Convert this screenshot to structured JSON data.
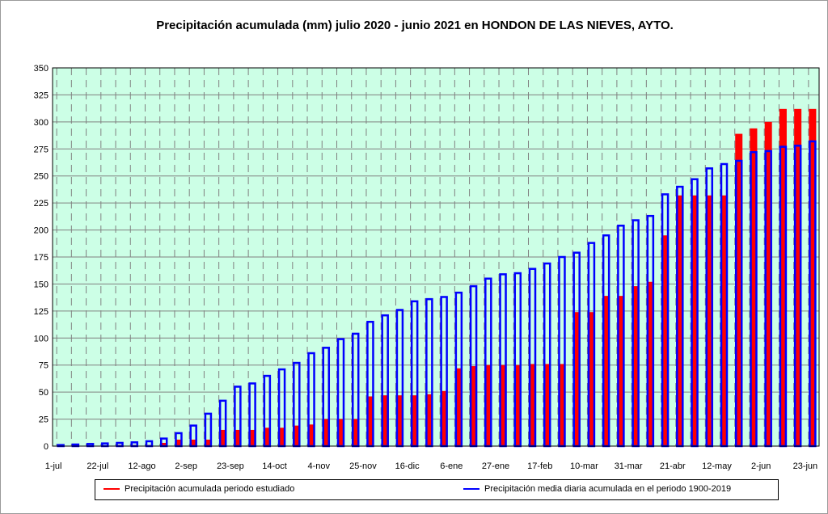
{
  "chart_data": {
    "type": "bar",
    "title": "Precipitación acumulada (mm) julio 2020 - junio 2021 en HONDON DE LAS NIEVES, AYTO.",
    "xlabel": "",
    "ylabel": "",
    "ylim": [
      0,
      350
    ],
    "yticks": [
      0,
      25,
      50,
      75,
      100,
      125,
      150,
      175,
      200,
      225,
      250,
      275,
      300,
      325,
      350
    ],
    "xtick_labels": [
      "1-jul",
      "22-jul",
      "12-ago",
      "2-sep",
      "23-sep",
      "14-oct",
      "4-nov",
      "25-nov",
      "16-dic",
      "6-ene",
      "27-ene",
      "17-feb",
      "10-mar",
      "31-mar",
      "21-abr",
      "12-may",
      "2-jun",
      "23-jun"
    ],
    "xtick_every": 3,
    "grid": true,
    "legend_position": "bottom",
    "series": [
      {
        "name": "Precipitación acumulada periodo estudiado",
        "color": "#ff0000",
        "values": [
          0,
          0,
          0.5,
          0.5,
          1,
          1,
          1,
          3,
          6,
          6,
          6,
          15,
          15,
          15,
          17,
          17,
          19,
          20,
          25,
          25,
          25,
          46,
          47,
          47,
          47,
          48,
          51,
          72,
          74,
          75,
          75,
          75,
          76,
          76,
          76,
          124,
          124,
          139,
          139,
          148,
          152,
          195,
          232,
          232,
          232,
          232,
          289,
          294,
          300,
          312,
          312,
          312
        ]
      },
      {
        "name": "Precipitación media diaria acumulada en el periodo 1900-2019",
        "color": "#0000ff",
        "values": [
          1,
          1.5,
          2,
          2.5,
          3,
          3.5,
          4.5,
          7,
          12,
          19,
          30,
          42,
          55,
          58,
          65,
          71,
          77,
          86,
          91,
          99,
          104,
          115,
          121,
          126,
          134,
          136,
          138,
          142,
          148,
          155,
          159,
          160,
          164,
          169,
          175,
          179,
          188,
          195,
          204,
          209,
          213,
          233,
          240,
          247,
          257,
          261,
          264,
          272,
          273,
          277,
          278,
          282
        ]
      }
    ]
  }
}
